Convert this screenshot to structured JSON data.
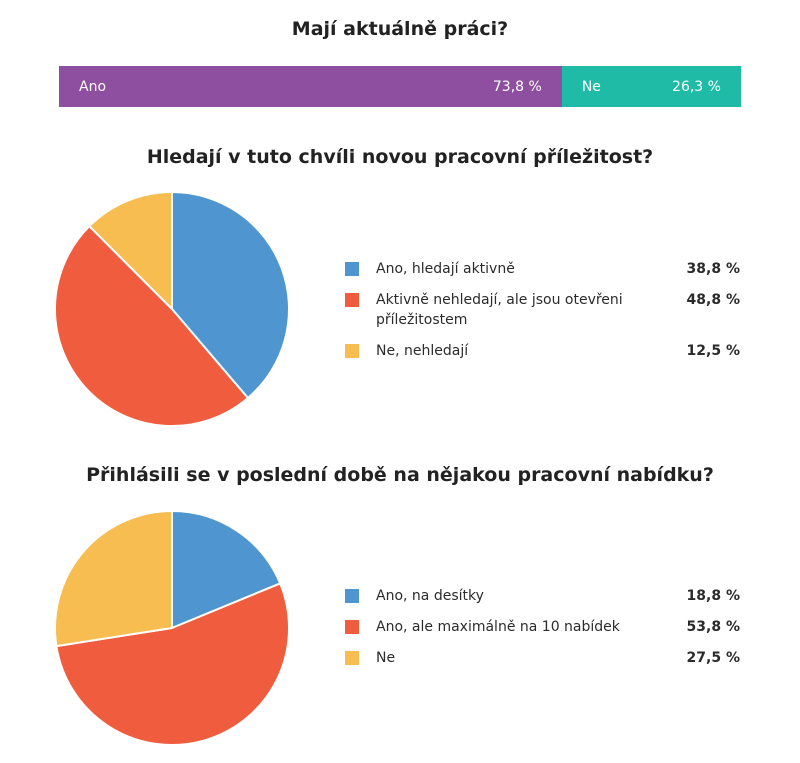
{
  "chart_data": [
    {
      "type": "bar",
      "orientation": "horizontal-stacked",
      "title": "Mají aktuálně práci?",
      "categories": [
        "Ano",
        "Ne"
      ],
      "values": [
        73.8,
        26.3
      ],
      "value_labels": [
        "73,8 %",
        "26,3 %"
      ],
      "colors": [
        "#8e4fa0",
        "#1fbba6"
      ]
    },
    {
      "type": "pie",
      "title": "Hledají v tuto chvíli novou pracovní příležitost?",
      "categories": [
        "Ano, hledají aktivně",
        "Aktivně nehledají, ale jsou otevřeni příležitostem",
        "Ne, nehledají"
      ],
      "values": [
        38.8,
        48.8,
        12.5
      ],
      "value_labels": [
        "38,8 %",
        "48,8 %",
        "12,5 %"
      ],
      "colors": [
        "#4f95d0",
        "#ef5c3e",
        "#f7bd50"
      ],
      "legend": "right"
    },
    {
      "type": "pie",
      "title": "Přihlásili se v poslední době na nějakou pracovní nabídku?",
      "categories": [
        "Ano, na desítky",
        "Ano, ale maximálně na 10 nabídek",
        "Ne"
      ],
      "values": [
        18.8,
        53.8,
        27.5
      ],
      "value_labels": [
        "18,8 %",
        "53,8 %",
        "27,5 %"
      ],
      "colors": [
        "#4f95d0",
        "#ef5c3e",
        "#f7bd50"
      ],
      "legend": "right"
    }
  ]
}
